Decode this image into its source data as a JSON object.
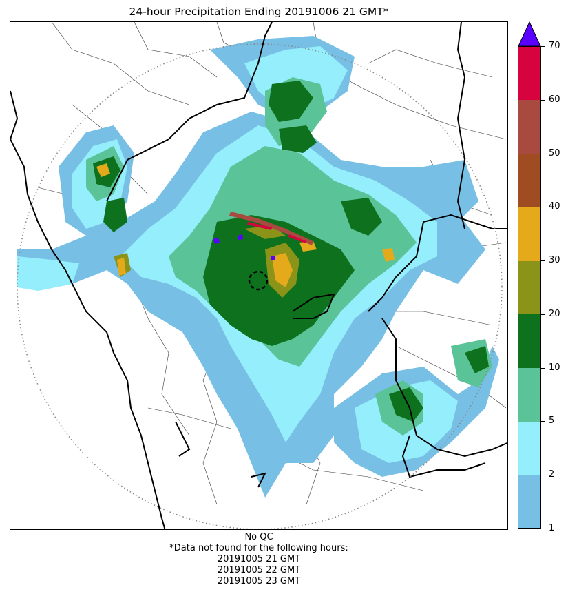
{
  "title": "24-hour Precipitation Ending 20191006 21 GMT*",
  "colorbar": {
    "min": 1,
    "max": 70,
    "extend_color": "#5a00ff",
    "bins": [
      {
        "from": 1,
        "to": 2,
        "color": "#77bfe4"
      },
      {
        "from": 2,
        "to": 5,
        "color": "#94eefb"
      },
      {
        "from": 5,
        "to": 10,
        "color": "#5bc398"
      },
      {
        "from": 10,
        "to": 20,
        "color": "#0e711d"
      },
      {
        "from": 20,
        "to": 30,
        "color": "#8b9419"
      },
      {
        "from": 30,
        "to": 40,
        "color": "#e5aa1b"
      },
      {
        "from": 40,
        "to": 50,
        "color": "#9f4c23"
      },
      {
        "from": 50,
        "to": 60,
        "color": "#a84a40"
      },
      {
        "from": 60,
        "to": 70,
        "color": "#d6033e"
      }
    ],
    "tick_labels": [
      "1",
      "2",
      "5",
      "10",
      "20",
      "30",
      "40",
      "50",
      "60",
      "70"
    ]
  },
  "footer": {
    "qc": "No QC",
    "note": "*Data not found for the following hours:",
    "missing_hours": [
      "20191005 21 GMT",
      "20191005 22 GMT",
      "20191005 23 GMT"
    ]
  }
}
